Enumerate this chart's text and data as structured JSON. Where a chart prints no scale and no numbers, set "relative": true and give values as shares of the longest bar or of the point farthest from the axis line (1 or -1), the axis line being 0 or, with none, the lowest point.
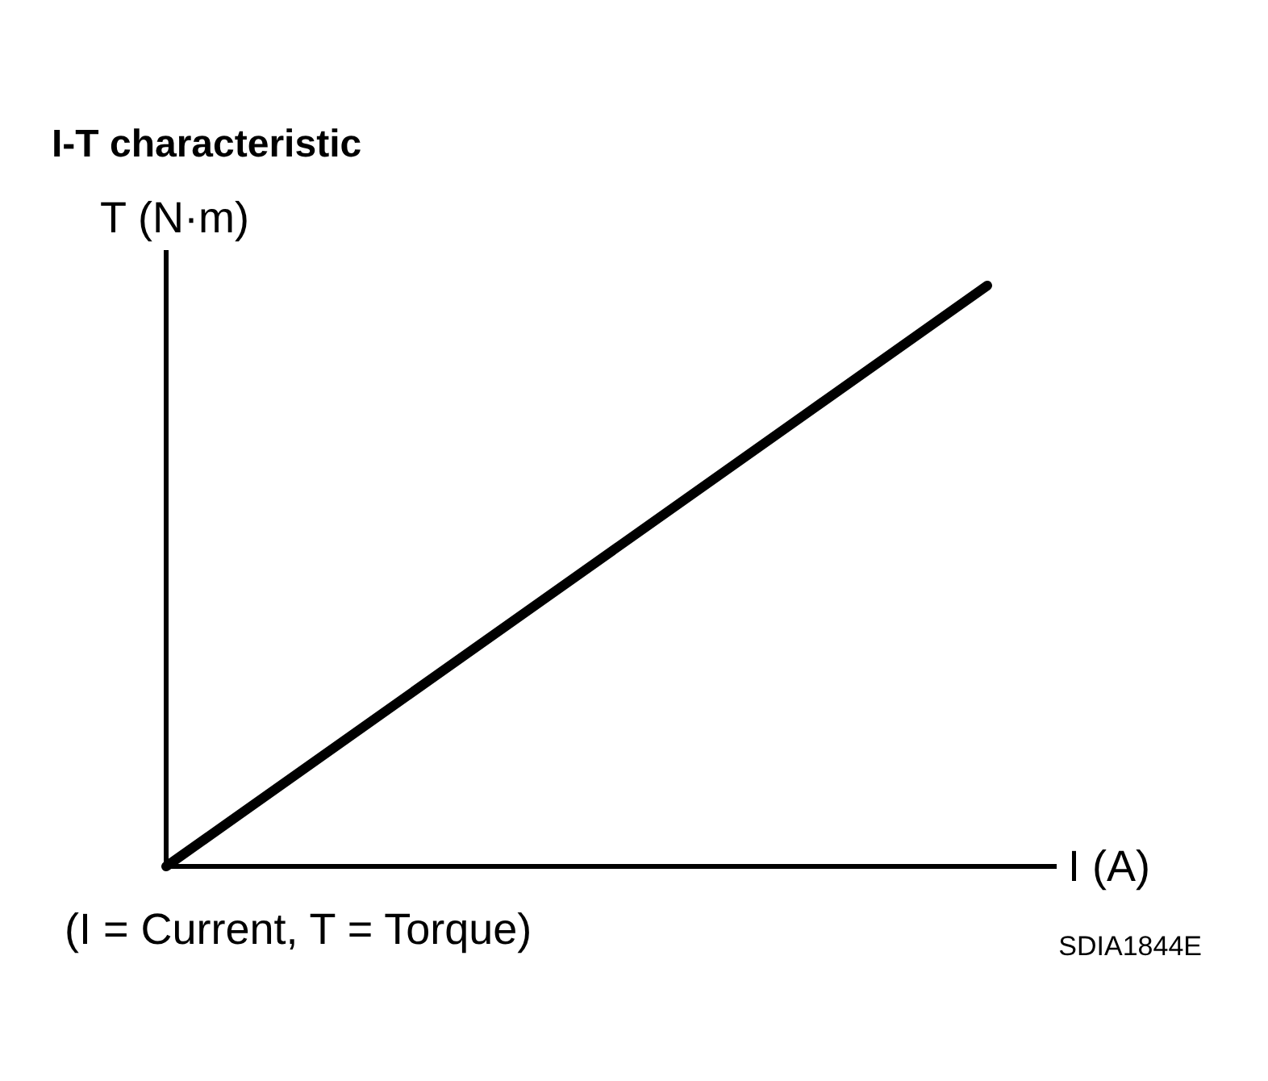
{
  "chart_data": {
    "type": "line",
    "title": "I-T characteristic",
    "ylabel": "T (N·m)",
    "xlabel": "I (A)",
    "relative": true,
    "categories": [
      null,
      null
    ],
    "series": [
      {
        "color": "#000000",
        "values": [
          0,
          1
        ]
      }
    ],
    "annotations": [
      "(I = Current, T = Torque)",
      "SDIA1844E"
    ]
  }
}
